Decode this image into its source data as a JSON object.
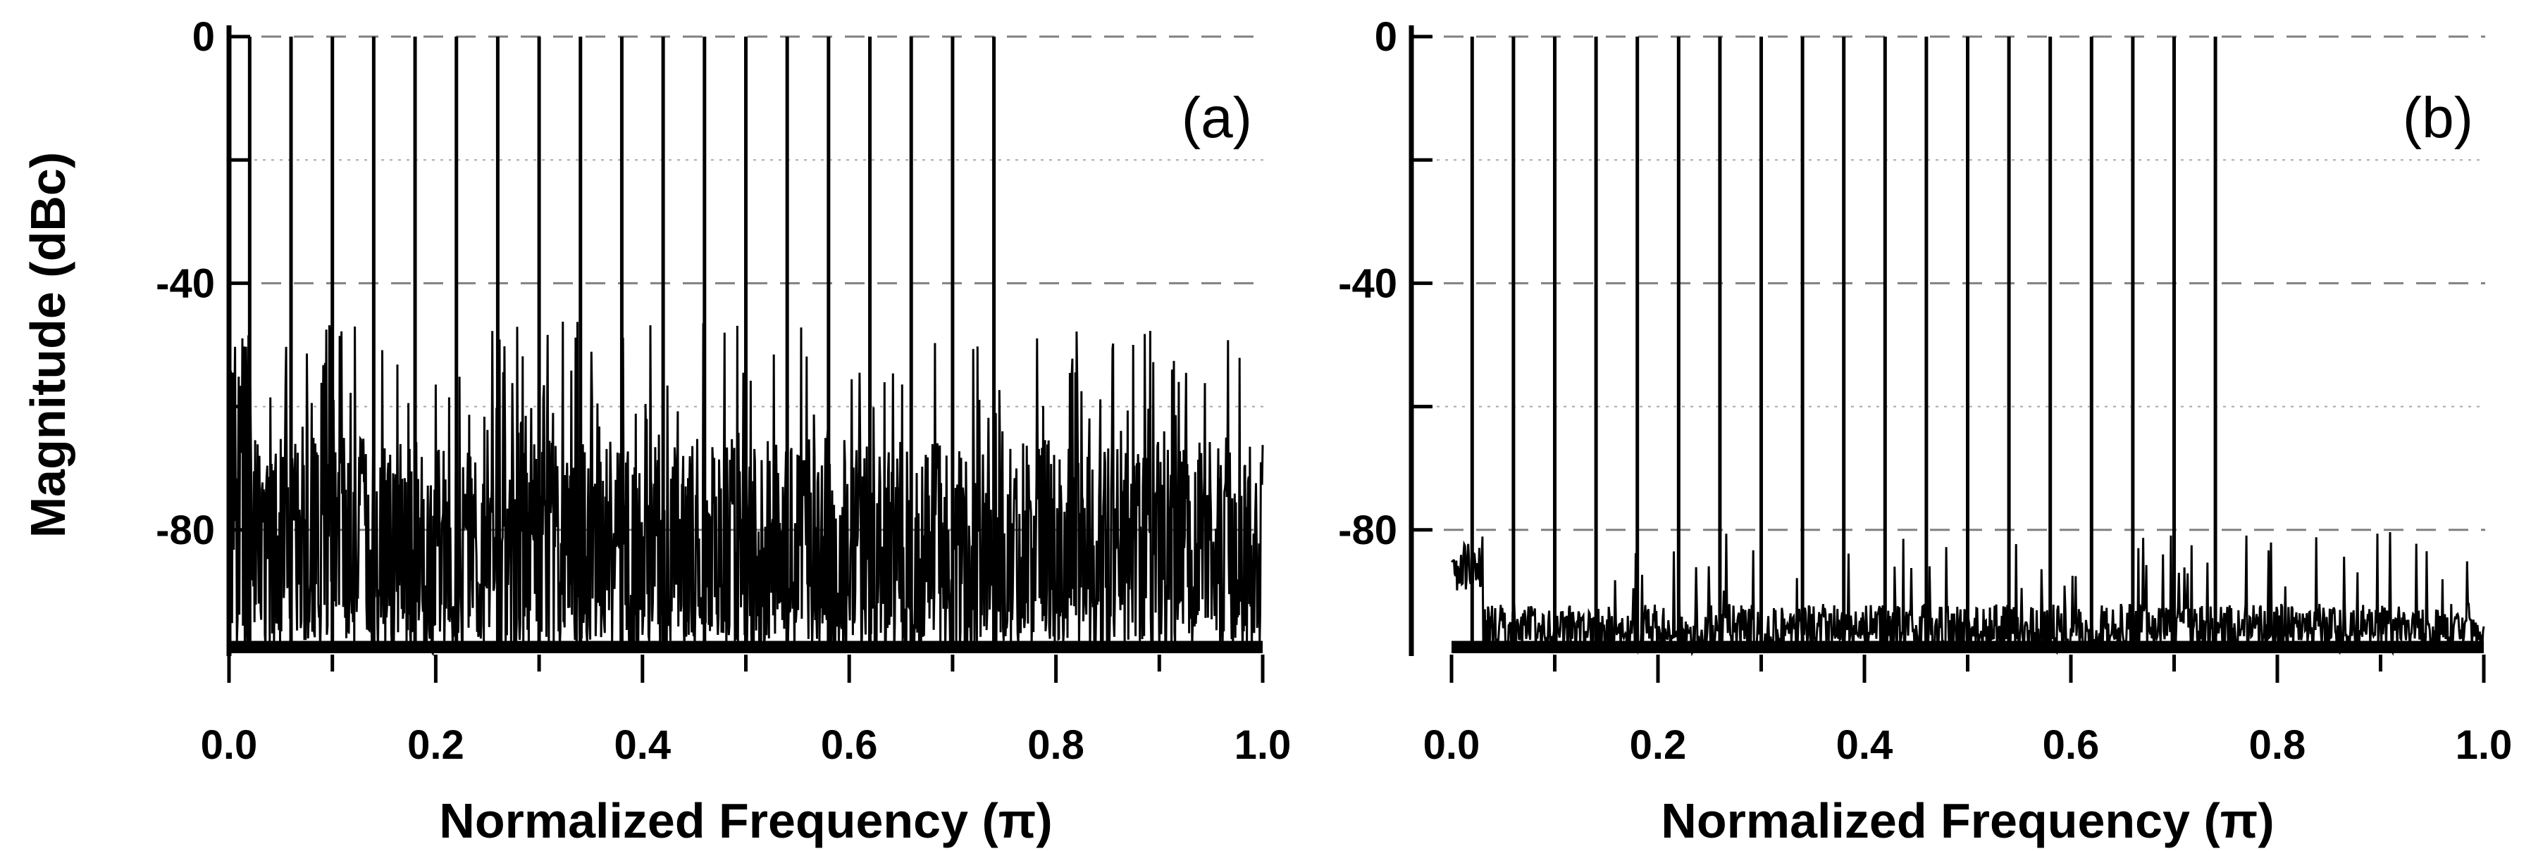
{
  "chart_data": [
    {
      "type": "line",
      "panel_label": "(a)",
      "xlabel": "Normalized Frequency (π)",
      "ylabel": "Magnitude (dBc)",
      "xlim": [
        0.0,
        1.0
      ],
      "ylim": [
        -100,
        0
      ],
      "xticks": [
        "0.0",
        "0.2",
        "0.4",
        "0.6",
        "0.8",
        "1.0"
      ],
      "yticks": [
        "0",
        "-40",
        "-80"
      ],
      "grid": "horizontal dashed at 0, -40, -80; dotted at -20, -60",
      "tone_frequencies": [
        0.02,
        0.06,
        0.1,
        0.14,
        0.18,
        0.22,
        0.26,
        0.3,
        0.34,
        0.38,
        0.42,
        0.46,
        0.5,
        0.54,
        0.58,
        0.62,
        0.66,
        0.7,
        0.74
      ],
      "tone_level_db": 0,
      "noise_floor_db": [
        -100,
        -88
      ],
      "spur_peak_range_db": [
        -78,
        -46
      ]
    },
    {
      "type": "line",
      "panel_label": "(b)",
      "xlabel": "Normalized Frequency (π)",
      "ylabel": "",
      "xlim": [
        0.0,
        1.0
      ],
      "ylim": [
        -100,
        0
      ],
      "xticks": [
        "0.0",
        "0.2",
        "0.4",
        "0.6",
        "0.8",
        "1.0"
      ],
      "yticks": [
        "0",
        "-40",
        "-80"
      ],
      "grid": "horizontal dashed at 0, -40, -80; dotted at -20, -60",
      "tone_frequencies": [
        0.02,
        0.06,
        0.1,
        0.14,
        0.18,
        0.22,
        0.26,
        0.3,
        0.34,
        0.38,
        0.42,
        0.46,
        0.5,
        0.54,
        0.58,
        0.62,
        0.66,
        0.7,
        0.74
      ],
      "tone_level_db": 0,
      "noise_floor_db": [
        -100,
        -92
      ],
      "spur_peak_range_db": [
        -90,
        -80
      ]
    }
  ]
}
